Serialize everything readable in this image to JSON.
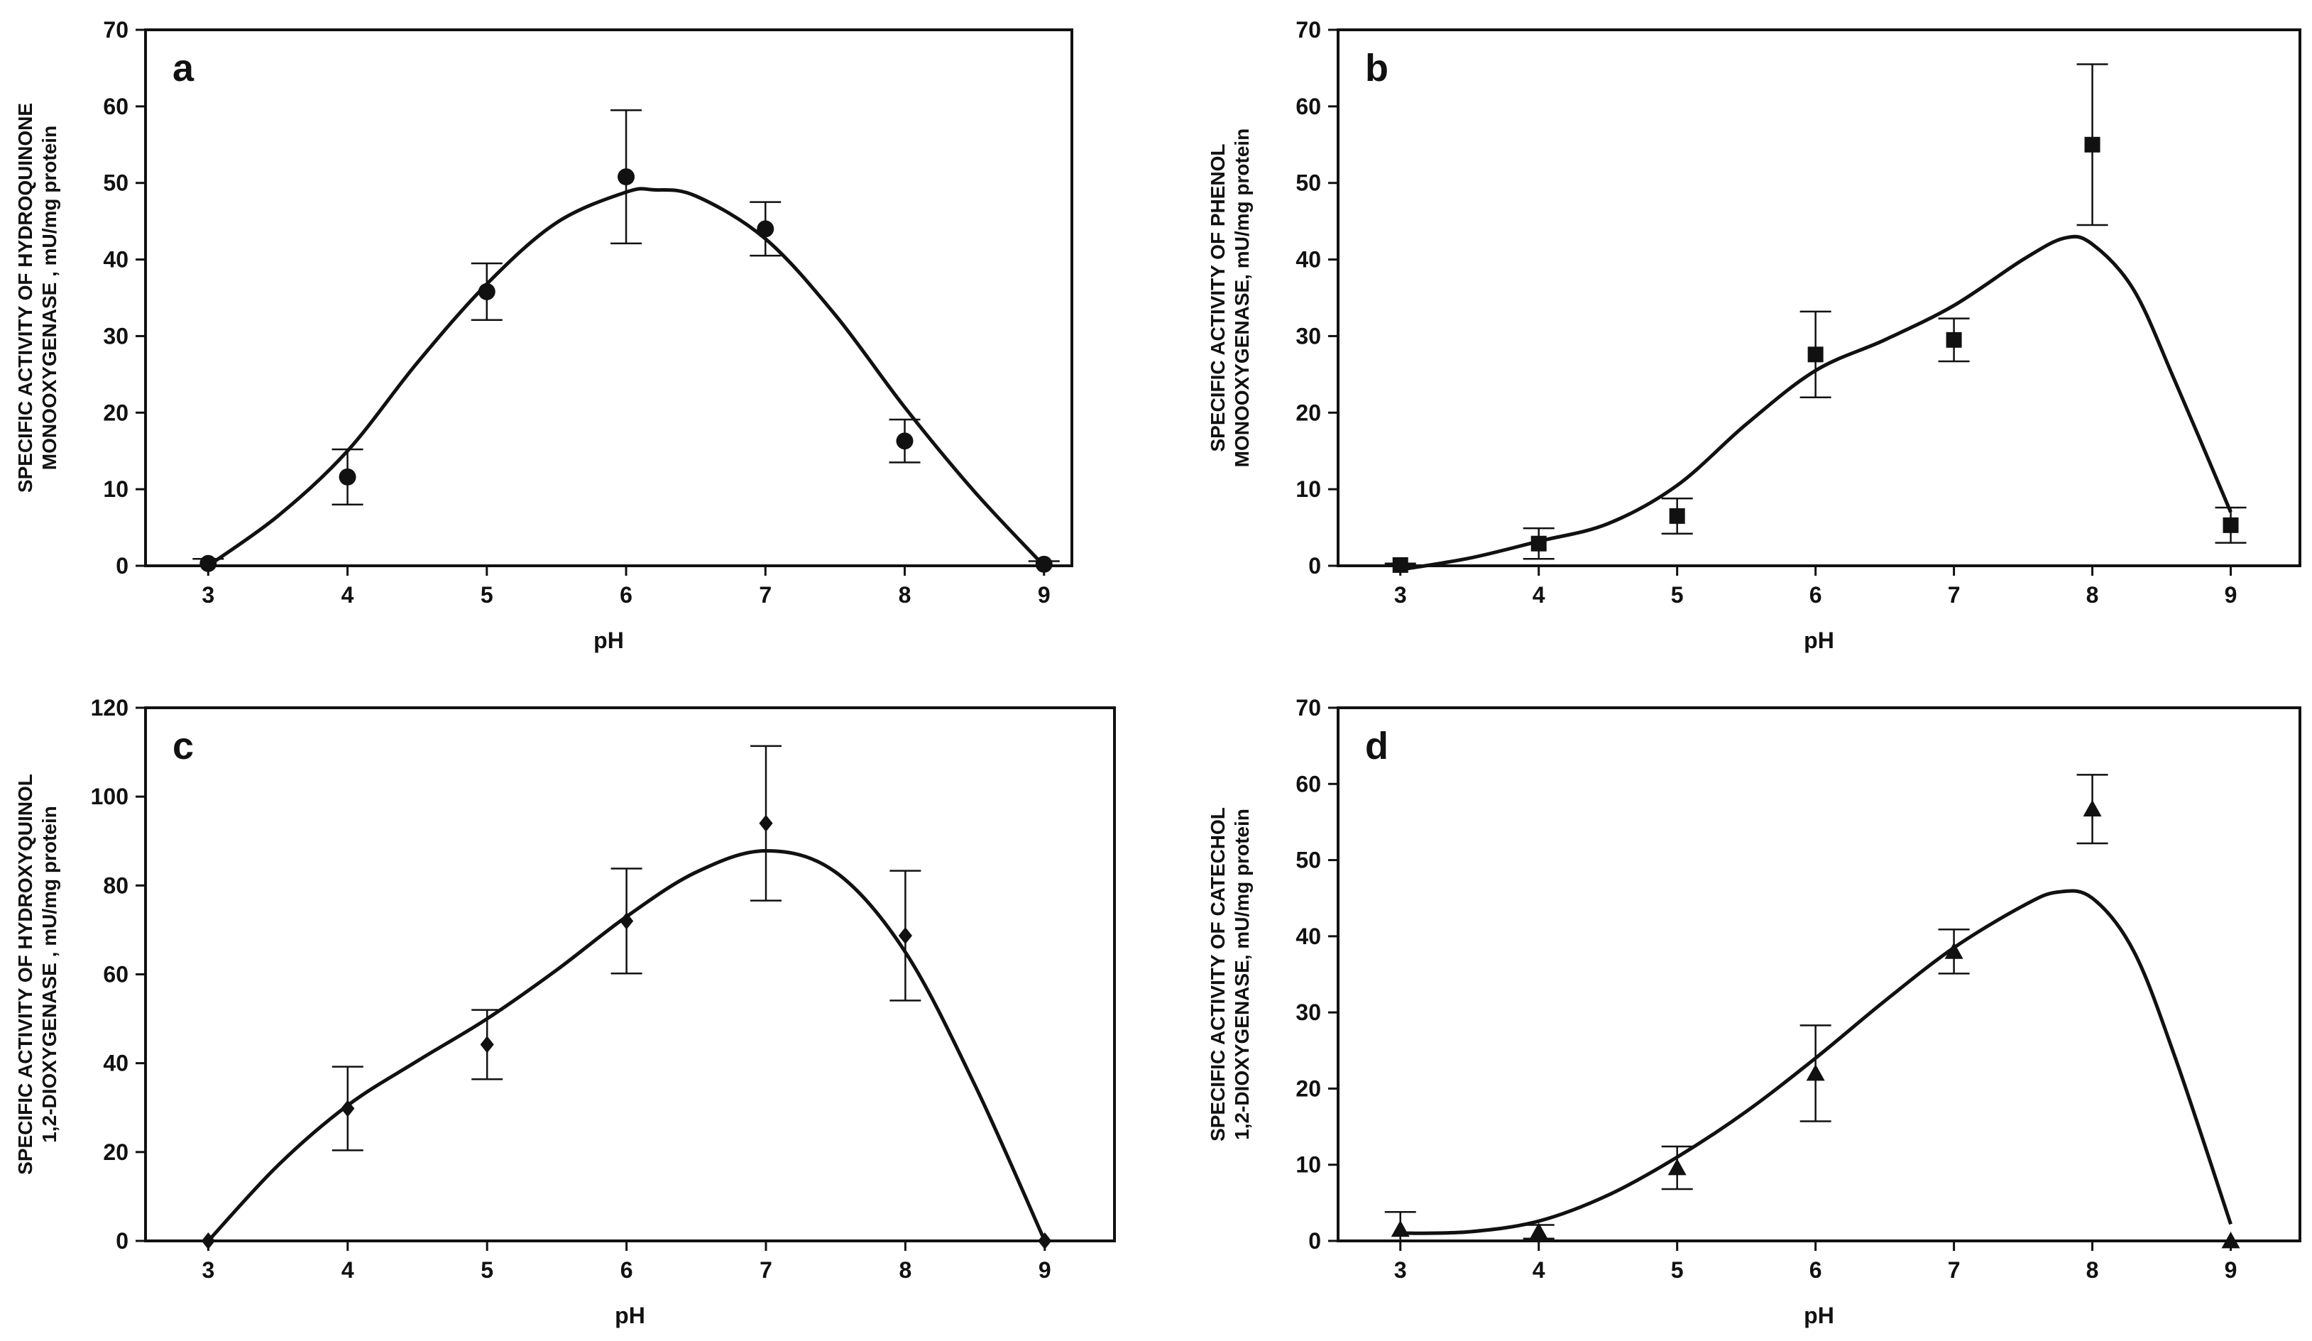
{
  "figure": {
    "background": "#ffffff",
    "ink": "#111111"
  },
  "chart_data": [
    {
      "panel": "a",
      "type": "scatter",
      "marker": "circle",
      "xlabel": "pH",
      "ylabel_lines": [
        "SPECIFIC ACTIVITY OF HYDROQUINONE",
        "MONOOXYGENASE , mU/mg protein"
      ],
      "xlim": [
        2.55,
        9.2
      ],
      "ylim": [
        0,
        70
      ],
      "xticks": [
        3,
        4,
        5,
        6,
        7,
        8,
        9
      ],
      "yticks": [
        0,
        10,
        20,
        30,
        40,
        50,
        60,
        70
      ],
      "x": [
        3,
        4,
        5,
        6,
        7,
        8,
        9
      ],
      "y": [
        0.3,
        11.6,
        35.8,
        50.8,
        44.0,
        16.3,
        0.2
      ],
      "err": [
        0.6,
        3.6,
        3.7,
        8.7,
        3.5,
        2.8,
        0.4
      ],
      "fit_curve": {
        "x": [
          3.0,
          3.5,
          4.0,
          4.5,
          5.0,
          5.5,
          6.0,
          6.2,
          6.5,
          7.0,
          7.5,
          8.0,
          8.5,
          9.0
        ],
        "y": [
          0.0,
          6.5,
          15.0,
          26.5,
          36.8,
          44.8,
          48.8,
          49.1,
          48.3,
          42.7,
          32.8,
          20.7,
          9.7,
          0.0
        ]
      }
    },
    {
      "panel": "b",
      "type": "scatter",
      "marker": "square",
      "xlabel": "pH",
      "ylabel_lines": [
        "SPECIFIC ACTIVITY OF PHENOL",
        "MONOOXYGENASE, mU/mg protein"
      ],
      "xlim": [
        2.55,
        9.5
      ],
      "ylim": [
        0,
        70
      ],
      "xticks": [
        3,
        4,
        5,
        6,
        7,
        8,
        9
      ],
      "yticks": [
        0,
        10,
        20,
        30,
        40,
        50,
        60,
        70
      ],
      "x": [
        3,
        4,
        5,
        6,
        7,
        8,
        9
      ],
      "y": [
        0.1,
        2.9,
        6.5,
        27.6,
        29.5,
        55.0,
        5.3
      ],
      "err": [
        0.2,
        2.0,
        2.3,
        5.6,
        2.8,
        10.5,
        2.3
      ],
      "fit_curve": {
        "x": [
          3.0,
          3.5,
          4.0,
          4.5,
          5.0,
          5.5,
          6.0,
          6.5,
          7.0,
          7.5,
          7.8,
          8.0,
          8.3,
          8.6,
          9.0
        ],
        "y": [
          -0.5,
          1.0,
          3.2,
          5.5,
          10.5,
          18.5,
          25.5,
          29.5,
          34.0,
          40.0,
          42.8,
          42.0,
          36.0,
          24.0,
          7.0
        ]
      }
    },
    {
      "panel": "c",
      "type": "scatter",
      "marker": "diamond",
      "xlabel": "pH",
      "ylabel_lines": [
        "SPECIFIC ACTIVITY OF HYDROXYQUINOL",
        "1,2-DIOXYGENASE , mU/mg protein"
      ],
      "xlim": [
        2.55,
        9.5
      ],
      "ylim": [
        0,
        120
      ],
      "xticks": [
        3,
        4,
        5,
        6,
        7,
        8,
        9
      ],
      "yticks": [
        0,
        20,
        40,
        60,
        80,
        100,
        120
      ],
      "x": [
        3,
        4,
        5,
        6,
        7,
        8,
        9
      ],
      "y": [
        0,
        29.8,
        44.2,
        72.0,
        94.0,
        68.7,
        0
      ],
      "err": [
        0,
        9.4,
        7.8,
        11.8,
        17.4,
        14.6,
        0
      ],
      "fit_curve": {
        "x": [
          3.0,
          3.5,
          4.0,
          4.5,
          5.0,
          5.5,
          6.0,
          6.5,
          7.0,
          7.5,
          8.0,
          8.5,
          9.0
        ],
        "y": [
          0.0,
          17.0,
          30.5,
          40.5,
          50.0,
          61.0,
          73.0,
          83.0,
          87.8,
          83.0,
          65.0,
          35.0,
          0.0
        ]
      }
    },
    {
      "panel": "d",
      "type": "scatter",
      "marker": "triangle",
      "xlabel": "pH",
      "ylabel_lines": [
        "SPECIFIC ACTIVITY OF CATECHOL",
        "1,2-DIOXYGENASE, mU/mg protein"
      ],
      "xlim": [
        2.55,
        9.5
      ],
      "ylim": [
        0,
        70
      ],
      "xticks": [
        3,
        4,
        5,
        6,
        7,
        8,
        9
      ],
      "yticks": [
        0,
        10,
        20,
        30,
        40,
        50,
        60,
        70
      ],
      "x": [
        3,
        4,
        5,
        6,
        7,
        8,
        9
      ],
      "y": [
        1.5,
        1.2,
        9.6,
        22.0,
        38.0,
        56.7,
        0
      ],
      "err": [
        2.3,
        0.9,
        2.8,
        6.3,
        2.9,
        4.5,
        0
      ],
      "fit_curve": {
        "x": [
          3.0,
          3.5,
          4.0,
          4.5,
          5.0,
          5.5,
          6.0,
          6.5,
          7.0,
          7.5,
          7.75,
          8.0,
          8.3,
          8.6,
          9.0
        ],
        "y": [
          1.0,
          1.2,
          2.6,
          6.0,
          11.0,
          17.0,
          24.0,
          31.5,
          38.5,
          44.0,
          45.8,
          45.0,
          38.0,
          24.0,
          2.2
        ]
      }
    }
  ]
}
